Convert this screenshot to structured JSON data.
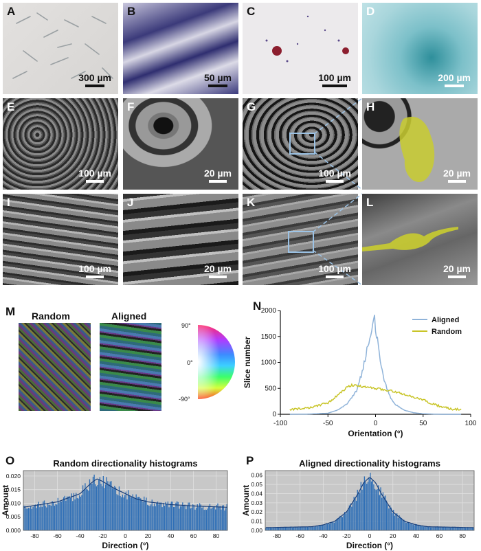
{
  "panels": [
    {
      "id": "A",
      "scale": "300 µm"
    },
    {
      "id": "B",
      "scale": "50 µm"
    },
    {
      "id": "C",
      "scale": "100 µm"
    },
    {
      "id": "D",
      "scale": "200 µm"
    },
    {
      "id": "E",
      "scale": "100 µm"
    },
    {
      "id": "F",
      "scale": "20 µm"
    },
    {
      "id": "G",
      "scale": "100 µm"
    },
    {
      "id": "H",
      "scale": "20 µm"
    },
    {
      "id": "I",
      "scale": "100 µm"
    },
    {
      "id": "J",
      "scale": "20 µm"
    },
    {
      "id": "K",
      "scale": "100 µm"
    },
    {
      "id": "L",
      "scale": "20 µm"
    },
    {
      "id": "M",
      "scale": ""
    },
    {
      "id": "N",
      "scale": ""
    },
    {
      "id": "O",
      "scale": ""
    },
    {
      "id": "P",
      "scale": ""
    }
  ],
  "panel_m": {
    "random_label": "Random",
    "aligned_label": "Aligned",
    "wheel_ticks": [
      "90°",
      "0°",
      "-90°"
    ]
  },
  "colors": {
    "aligned": "#8fb3d9",
    "random": "#c8c426",
    "bar": "#2f6fb6",
    "fit": "#1a3f7a",
    "plot_bg": "#c8c8c8",
    "annot": "#9cc3e6"
  },
  "chart_data": [
    {
      "type": "line",
      "panel": "N",
      "title": "",
      "xlabel": "Orientation (°)",
      "ylabel": "Slice number",
      "xlim": [
        -100,
        100
      ],
      "ylim": [
        0,
        2000
      ],
      "xticks": [
        -100,
        -50,
        0,
        50,
        100
      ],
      "yticks": [
        0,
        500,
        1000,
        1500,
        2000
      ],
      "legend": "top-right",
      "series": [
        {
          "name": "Aligned",
          "x": [
            -90,
            -70,
            -50,
            -40,
            -30,
            -20,
            -15,
            -10,
            -5,
            -2,
            0,
            2,
            5,
            10,
            15,
            20,
            30,
            40,
            50,
            60,
            70,
            90
          ],
          "y": [
            0,
            5,
            20,
            80,
            200,
            450,
            750,
            1150,
            1550,
            1950,
            1700,
            1400,
            1000,
            600,
            350,
            200,
            80,
            30,
            10,
            5,
            0,
            0
          ]
        },
        {
          "name": "Random",
          "x": [
            -90,
            -70,
            -50,
            -40,
            -30,
            -25,
            -20,
            -10,
            0,
            10,
            20,
            30,
            40,
            50,
            60,
            70,
            80,
            90
          ],
          "y": [
            90,
            120,
            220,
            360,
            520,
            560,
            550,
            520,
            500,
            470,
            440,
            380,
            330,
            280,
            200,
            140,
            100,
            90
          ]
        }
      ]
    },
    {
      "type": "bar",
      "panel": "O",
      "title": "Random directionality histograms",
      "xlabel": "Direction (°)",
      "ylabel": "Amount",
      "xlim": [
        -90,
        90
      ],
      "ylim": [
        0,
        0.022
      ],
      "xticks": [
        -80,
        -60,
        -40,
        -20,
        0,
        20,
        40,
        60,
        80
      ],
      "yticks": [
        "0.000",
        "0.005",
        "0.010",
        "0.015",
        "0.020"
      ],
      "profile_x": [
        -90,
        -60,
        -40,
        -30,
        -25,
        -20,
        -10,
        0,
        10,
        20,
        40,
        60,
        90
      ],
      "profile_y": [
        0.0085,
        0.0105,
        0.0135,
        0.0175,
        0.019,
        0.018,
        0.0155,
        0.0135,
        0.0115,
        0.0105,
        0.0095,
        0.009,
        0.0085
      ]
    },
    {
      "type": "bar",
      "panel": "P",
      "title": "Aligned directionality histograms",
      "xlabel": "Direction (°)",
      "ylabel": "Amount",
      "xlim": [
        -90,
        90
      ],
      "ylim": [
        0,
        0.065
      ],
      "xticks": [
        -80,
        -60,
        -40,
        -20,
        0,
        20,
        40,
        60,
        80
      ],
      "yticks": [
        "0.00",
        "0.01",
        "0.02",
        "0.03",
        "0.04",
        "0.05",
        "0.06"
      ],
      "profile_x": [
        -90,
        -50,
        -40,
        -30,
        -20,
        -10,
        -5,
        0,
        5,
        10,
        20,
        30,
        40,
        50,
        90
      ],
      "profile_y": [
        0.003,
        0.004,
        0.006,
        0.01,
        0.02,
        0.04,
        0.052,
        0.058,
        0.052,
        0.04,
        0.02,
        0.01,
        0.006,
        0.004,
        0.003
      ]
    }
  ]
}
